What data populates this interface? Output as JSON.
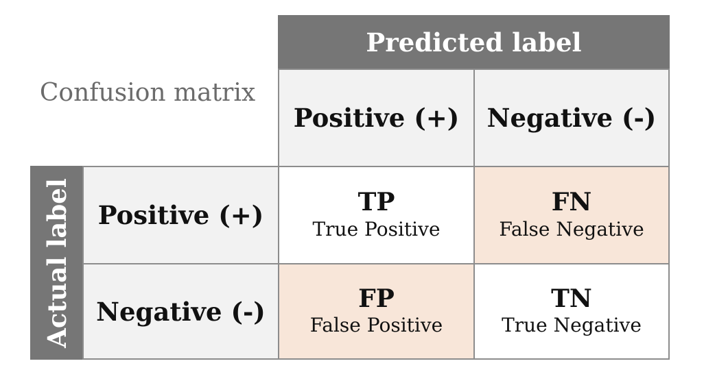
{
  "title": "Confusion matrix",
  "predicted_header": "Predicted label",
  "actual_header": "Actual label",
  "columns": [
    "Positive (+)",
    "Negative (-)"
  ],
  "rows": [
    "Positive (+)",
    "Negative (-)"
  ],
  "cells": [
    [
      {
        "abbr": "TP",
        "full": "True Positive"
      },
      {
        "abbr": "FN",
        "full": "False Negative"
      }
    ],
    [
      {
        "abbr": "FP",
        "full": "False Positive"
      },
      {
        "abbr": "TN",
        "full": "True Negative"
      }
    ]
  ],
  "colors": {
    "header": "#767676",
    "label_bg": "#f2f2f2",
    "correct_bg": "#ffffff",
    "error_bg": "#f8e6d9"
  }
}
